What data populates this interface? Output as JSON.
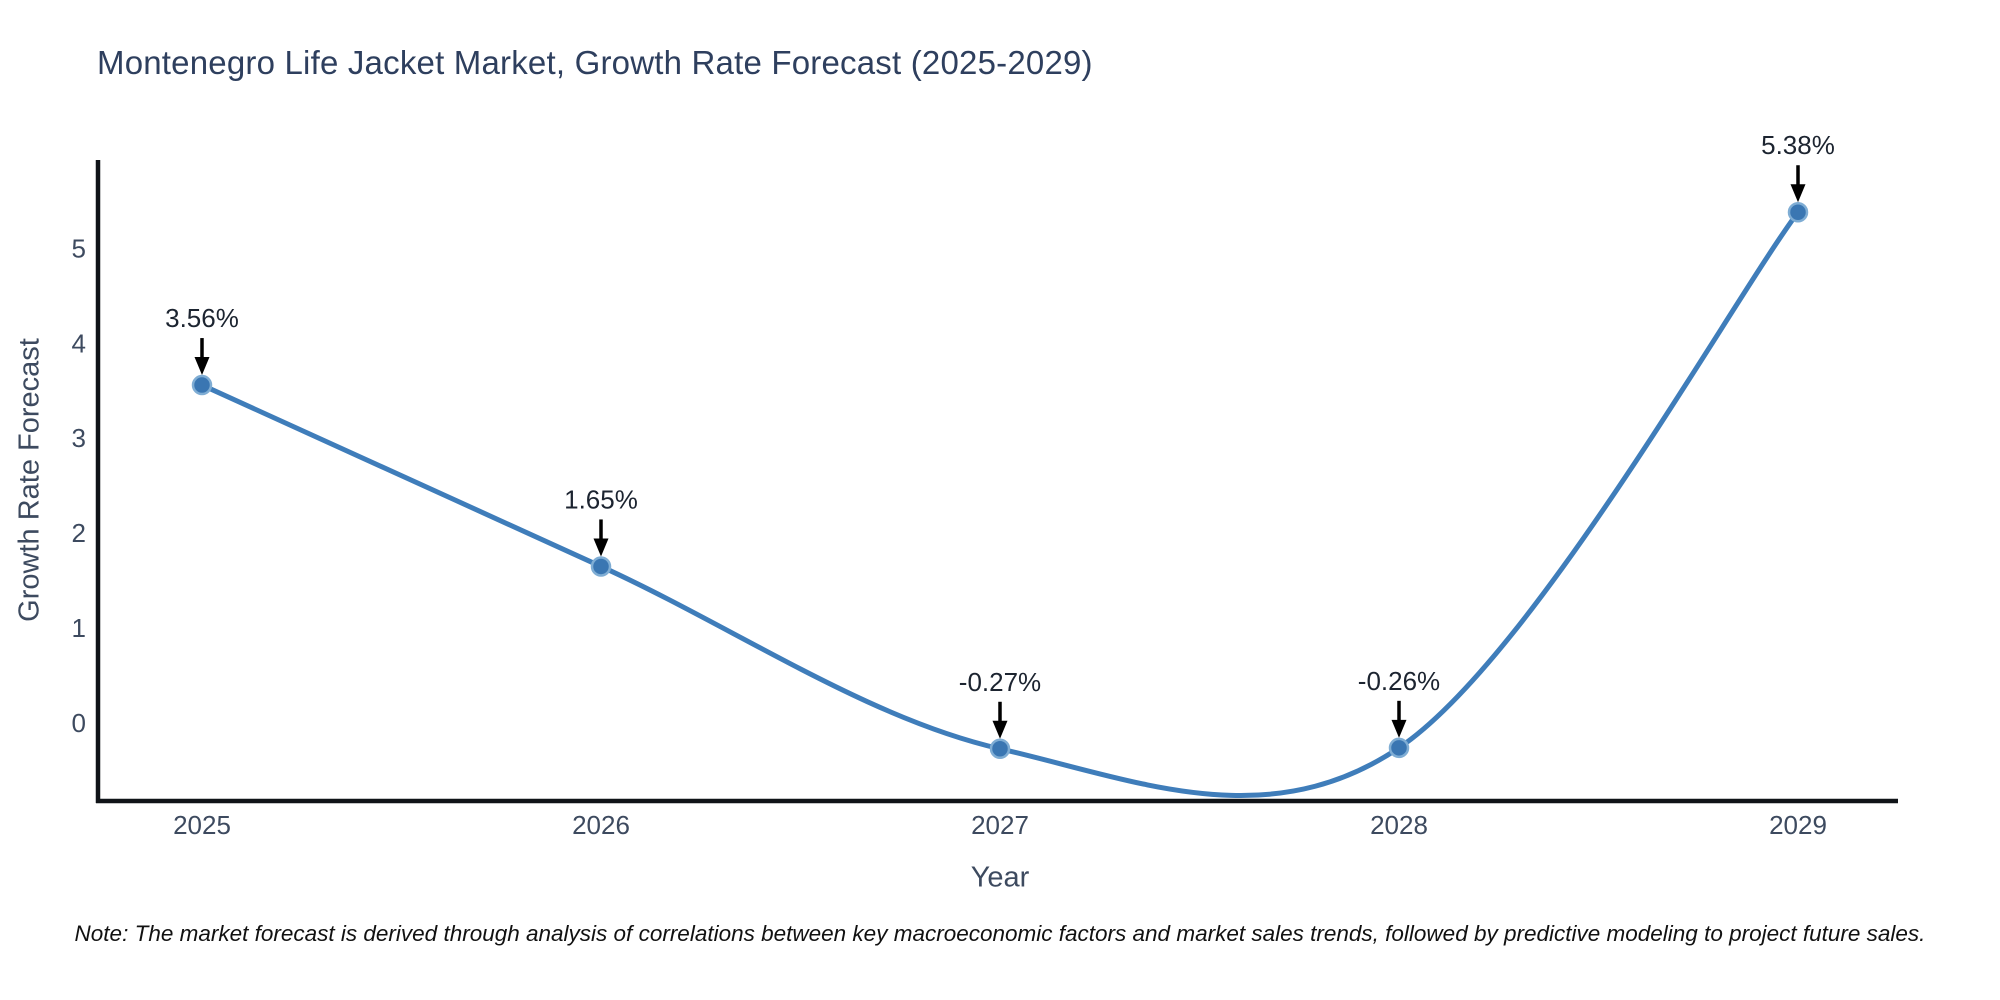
{
  "header": {
    "title": "Montenegro Life Jacket Market, Growth Rate Forecast (2025-2029)"
  },
  "footnote": {
    "text": "Note: The market forecast is derived through analysis of correlations between key macroeconomic factors and market sales trends, followed by predictive modeling to project future sales."
  },
  "chart_data": {
    "type": "line",
    "line_shape": "spline",
    "title": "Montenegro Life Jacket Market, Growth Rate Forecast (2025-2029)",
    "xlabel": "Year",
    "ylabel": "Growth Rate Forecast",
    "categories": [
      "2025",
      "2026",
      "2027",
      "2028",
      "2029"
    ],
    "values": [
      3.56,
      1.65,
      -0.27,
      -0.26,
      5.38
    ],
    "point_labels": [
      "3.56%",
      "1.65%",
      "-0.27%",
      "-0.26%",
      "5.38%"
    ],
    "yticks": [
      0,
      1,
      2,
      3,
      4,
      5
    ],
    "ylim": [
      -0.82,
      5.93
    ],
    "grid": false,
    "legend": "none",
    "annotations": "arrow-above-each-point",
    "colors": {
      "line": "#3f7dba",
      "marker": "#3a76b2",
      "marker_halo": "#7fadd4",
      "axis": "#101418",
      "title_text": "#2e3f5e",
      "tick_text": "#3d4a5f",
      "annotation_text": "#1c2430",
      "arrow": "#000000",
      "note_text": "#111111",
      "background": "#ffffff"
    }
  }
}
